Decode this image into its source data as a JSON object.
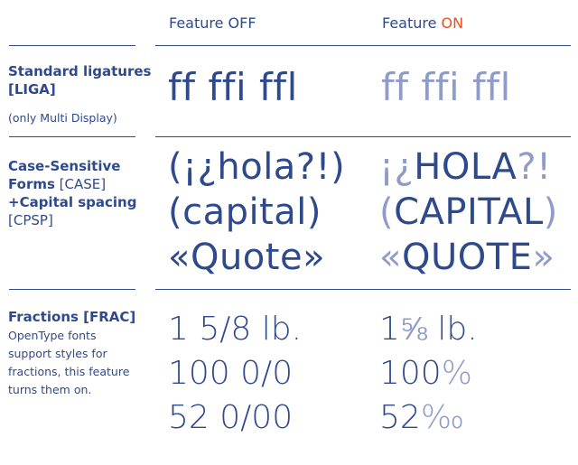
{
  "header": {
    "off_label": "Feature OFF",
    "on_prefix": "Feature ",
    "on_word": "ON"
  },
  "rows": {
    "liga": {
      "title_line1": "Standard ligatures",
      "title_line2": "[LIGA]",
      "note": "(only Multi Display)",
      "off_sample": "ff ffi ffl",
      "on_sample": "ff ffi ffl"
    },
    "case": {
      "title_line1": "Case-Sensitive",
      "title_line2_bold": "Forms",
      "title_line2_tag": " [CASE]",
      "title_line3": "+Capital spacing",
      "title_line4": "[CPSP]",
      "off_lines": [
        "(¡¿hola?!)",
        "(capital)",
        "«Quote»"
      ],
      "on_line1": {
        "p1": "¡¿",
        "p2": "HOLA",
        "p3": "?!"
      },
      "on_line2": {
        "p1": "(",
        "p2": "CAPITAL",
        "p3": ")"
      },
      "on_line3": {
        "p1": "«",
        "p2": "QUOTE",
        "p3": "»"
      }
    },
    "frac": {
      "title": "Fractions [FRAC]",
      "desc_lines": [
        "OpenType fonts",
        "support styles for",
        "fractions, this feature",
        "turns them on."
      ],
      "off_lines": [
        "1 5/8 lb.",
        "100 0/0",
        "52 0/00"
      ],
      "on_line1": {
        "whole": "1",
        "frac": "⅝",
        "unit": " lb."
      },
      "on_line2": {
        "whole": "100",
        "sym": "%"
      },
      "on_line3": {
        "whole": "52",
        "sym": "‰"
      }
    }
  },
  "colors": {
    "primary": "#2e4a8c",
    "accent": "#e8501f",
    "light": "#8f9cc9"
  }
}
